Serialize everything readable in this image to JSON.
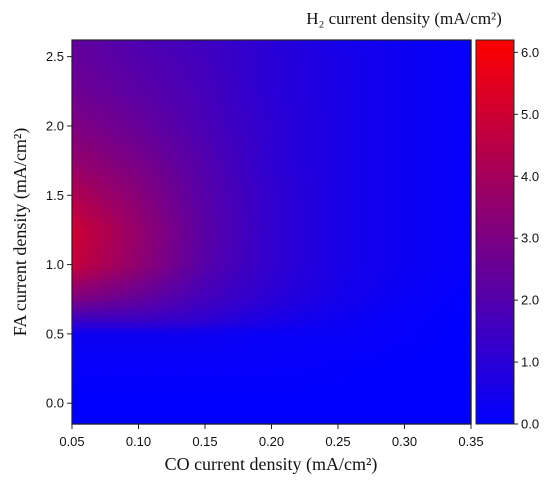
{
  "chart_data": {
    "type": "heatmap",
    "title": "",
    "xlabel": "CO current density (mA/cm²)",
    "ylabel": "FA current density (mA/cm²)",
    "colorbar_label": "H₂ current density (mA/cm²)",
    "xlim": [
      0.05,
      0.35
    ],
    "ylim": [
      -0.15,
      2.62
    ],
    "zlim": [
      0.0,
      6.2
    ],
    "x_ticks": [
      0.05,
      0.1,
      0.15,
      0.2,
      0.25,
      0.3,
      0.35
    ],
    "x_tick_labels": [
      "0.05",
      "0.10",
      "0.15",
      "0.20",
      "0.25",
      "0.30",
      "0.35"
    ],
    "y_ticks": [
      0.0,
      0.5,
      1.0,
      1.5,
      2.0,
      2.5
    ],
    "y_tick_labels": [
      "0.0",
      "0.5",
      "1.0",
      "1.5",
      "2.0",
      "2.5"
    ],
    "colorbar_ticks": [
      0.0,
      1.0,
      2.0,
      3.0,
      4.0,
      5.0,
      6.0
    ],
    "colorbar_tick_labels": [
      "0.0",
      "1.0",
      "2.0",
      "3.0",
      "4.0",
      "5.0",
      "6.0"
    ],
    "colormap": [
      "#0000ff",
      "#ff0000"
    ],
    "x": [
      0.05,
      0.1,
      0.15,
      0.2,
      0.25,
      0.3,
      0.35
    ],
    "y": [
      -0.15,
      0.0,
      0.25,
      0.5,
      0.6,
      0.75,
      1.0,
      1.25,
      1.5,
      1.75,
      2.0,
      2.25,
      2.5,
      2.62
    ],
    "z": [
      [
        0.0,
        0.0,
        0.0,
        0.0,
        0.0,
        0.0,
        0.0
      ],
      [
        0.0,
        0.0,
        0.0,
        0.0,
        0.0,
        0.0,
        0.0
      ],
      [
        0.1,
        0.1,
        0.1,
        0.1,
        0.05,
        0.0,
        0.0
      ],
      [
        0.3,
        0.3,
        0.3,
        0.2,
        0.2,
        0.1,
        0.0
      ],
      [
        1.4,
        1.4,
        1.1,
        0.6,
        0.3,
        0.1,
        0.0
      ],
      [
        3.0,
        2.4,
        1.6,
        1.0,
        0.5,
        0.2,
        0.0
      ],
      [
        4.8,
        3.5,
        2.1,
        1.2,
        0.6,
        0.3,
        0.1
      ],
      [
        5.0,
        3.6,
        2.2,
        1.2,
        0.6,
        0.3,
        0.1
      ],
      [
        4.3,
        3.3,
        2.1,
        1.2,
        0.6,
        0.3,
        0.1
      ],
      [
        3.6,
        2.9,
        2.0,
        1.1,
        0.6,
        0.3,
        0.1
      ],
      [
        3.1,
        2.5,
        1.8,
        1.1,
        0.6,
        0.3,
        0.1
      ],
      [
        2.7,
        2.2,
        1.7,
        1.0,
        0.6,
        0.3,
        0.1
      ],
      [
        2.5,
        2.0,
        1.6,
        1.0,
        0.6,
        0.3,
        0.1
      ],
      [
        2.4,
        1.9,
        1.5,
        1.0,
        0.5,
        0.3,
        0.1
      ]
    ],
    "grid": false
  }
}
